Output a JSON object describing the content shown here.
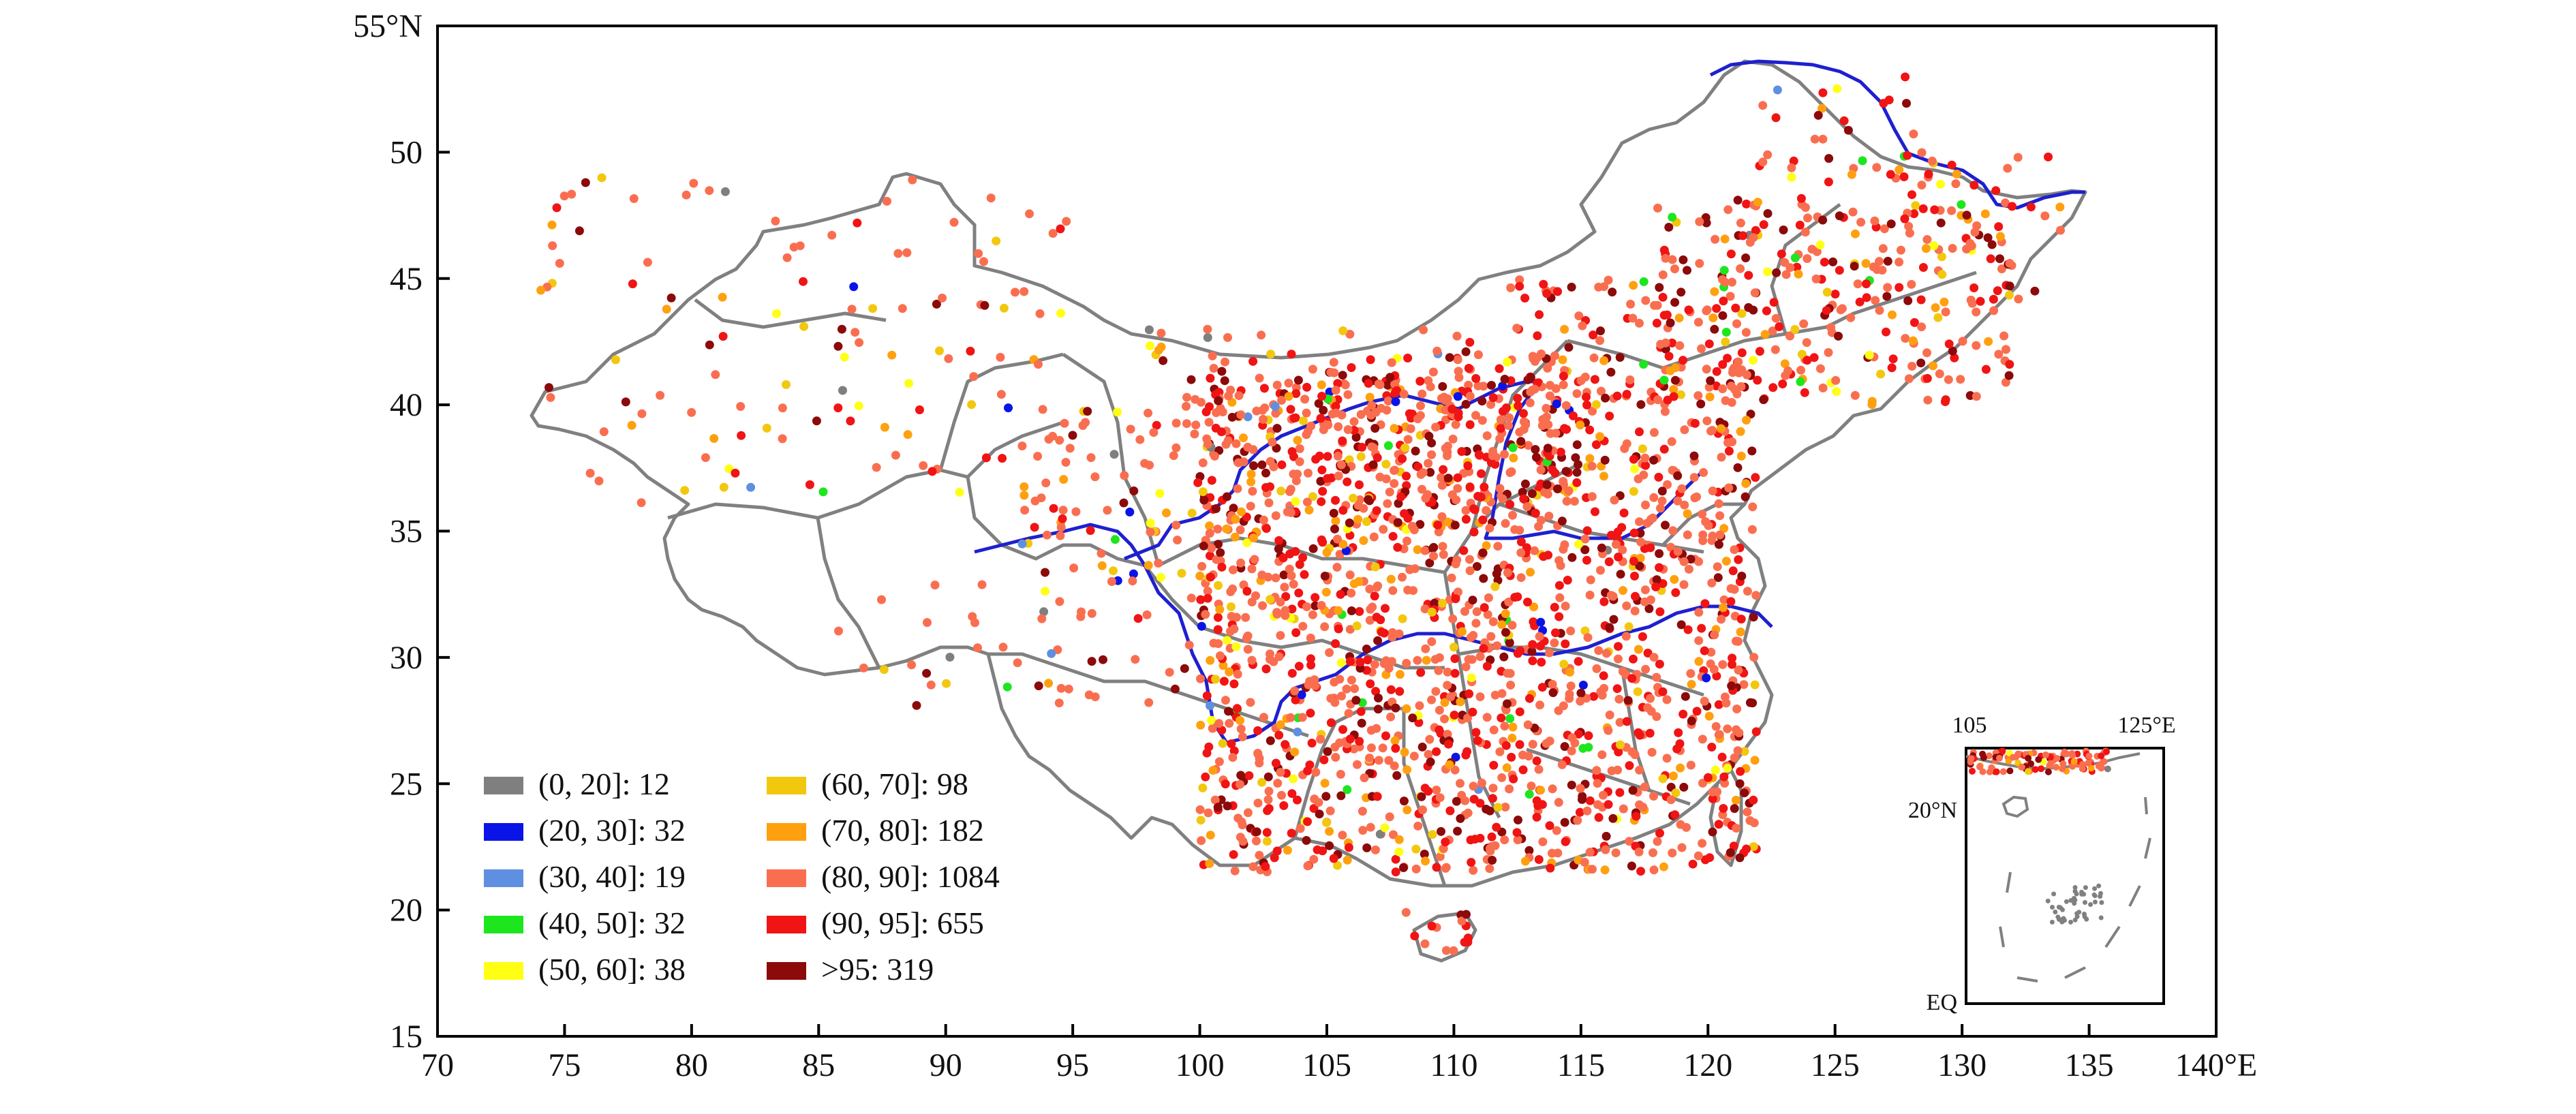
{
  "map": {
    "lon_range": [
      70,
      140
    ],
    "lat_range": [
      15,
      55
    ],
    "x_ticks": [
      {
        "lon": 70,
        "label": "70"
      },
      {
        "lon": 75,
        "label": "75"
      },
      {
        "lon": 80,
        "label": "80"
      },
      {
        "lon": 85,
        "label": "85"
      },
      {
        "lon": 90,
        "label": "90"
      },
      {
        "lon": 95,
        "label": "95"
      },
      {
        "lon": 100,
        "label": "100"
      },
      {
        "lon": 105,
        "label": "105"
      },
      {
        "lon": 110,
        "label": "110"
      },
      {
        "lon": 115,
        "label": "115"
      },
      {
        "lon": 120,
        "label": "120"
      },
      {
        "lon": 125,
        "label": "125"
      },
      {
        "lon": 130,
        "label": "130"
      },
      {
        "lon": 135,
        "label": "135"
      },
      {
        "lon": 140,
        "label": "140°E"
      }
    ],
    "y_ticks": [
      {
        "lat": 15,
        "label": "15"
      },
      {
        "lat": 20,
        "label": "20"
      },
      {
        "lat": 25,
        "label": "25"
      },
      {
        "lat": 30,
        "label": "30"
      },
      {
        "lat": 35,
        "label": "35"
      },
      {
        "lat": 40,
        "label": "40"
      },
      {
        "lat": 45,
        "label": "45"
      },
      {
        "lat": 50,
        "label": "50"
      },
      {
        "lat": 55,
        "label": "55°N"
      }
    ],
    "inset": {
      "lon_range": [
        105,
        125
      ],
      "lat_range": [
        0,
        25
      ],
      "top_labels": [
        "105",
        "125°E"
      ],
      "left_labels": [
        "20°N",
        "EQ"
      ]
    },
    "colors": {
      "border": "#808080",
      "river": "#1f1fd0"
    }
  },
  "legend": {
    "items": [
      {
        "label": "(0, 20]: 12",
        "color": "#7f7f7f"
      },
      {
        "label": "(20, 30]: 32",
        "color": "#0a14e6"
      },
      {
        "label": "(30, 40]: 19",
        "color": "#5f8fe0"
      },
      {
        "label": "(40, 50]: 32",
        "color": "#1ee61e"
      },
      {
        "label": "(50, 60]: 38",
        "color": "#ffff14"
      },
      {
        "label": "(60, 70]: 98",
        "color": "#f2c80f"
      },
      {
        "label": "(70, 80]: 182",
        "color": "#ffa00f"
      },
      {
        "label": "(80, 90]: 1084",
        "color": "#fa6e50"
      },
      {
        "label": "(90, 95]: 655",
        "color": "#f01414"
      },
      {
        "label": ">95: 319",
        "color": "#8c0a0a"
      }
    ]
  }
}
